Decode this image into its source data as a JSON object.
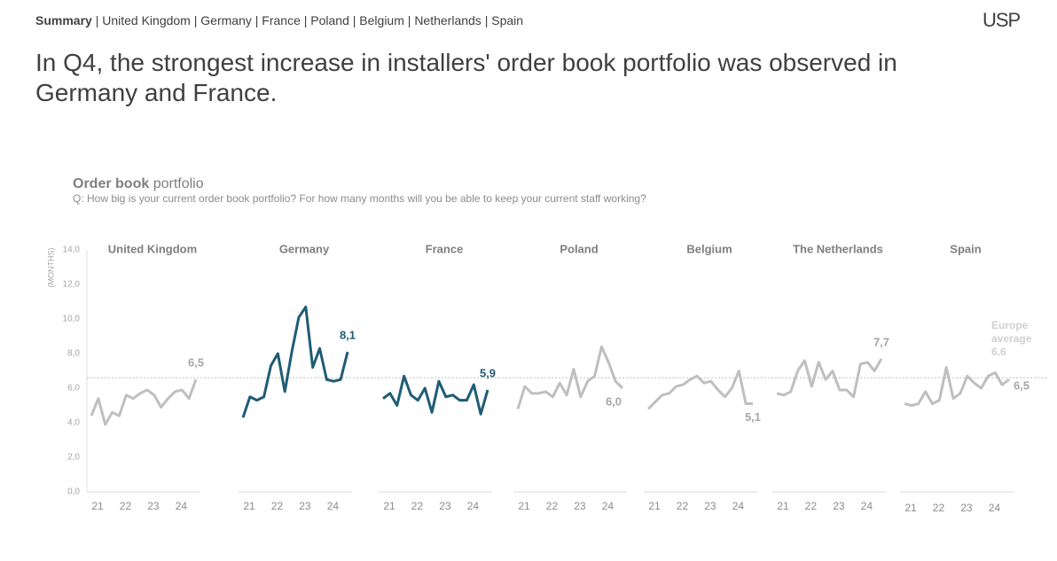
{
  "nav": [
    "Summary",
    "United Kingdom",
    "Germany",
    "France",
    "Poland",
    "Belgium",
    "Netherlands",
    "Spain"
  ],
  "nav_separator": "|",
  "logo": "USP",
  "headline": "In Q4, the strongest increase in installers' order book portfolio was observed in Germany and France.",
  "chart_data": {
    "type": "line",
    "title_bold": "Order book",
    "title": "portfolio",
    "subtitle": "Q: How big is your current order book portfolio? For how many months will you be able to keep your current staff working?",
    "ylabel": "(MONTHS)",
    "ylim": [
      0,
      14
    ],
    "yticks": [
      {
        "value": 0,
        "label": "0,0"
      },
      {
        "value": 2,
        "label": "2,0"
      },
      {
        "value": 4,
        "label": "4,0"
      },
      {
        "value": 6,
        "label": "6,0"
      },
      {
        "value": 8,
        "label": "8,0"
      },
      {
        "value": 10,
        "label": "10,0"
      },
      {
        "value": 12,
        "label": "12,0"
      },
      {
        "value": 14,
        "label": "14,0"
      }
    ],
    "categories": [
      "21",
      null,
      null,
      null,
      "22",
      null,
      null,
      null,
      "23",
      null,
      null,
      null,
      "24",
      null,
      null,
      null
    ],
    "reference": {
      "label": "Europe average",
      "value": 6.6,
      "value_label": "6.6",
      "color": "#d0d0d0"
    },
    "series": [
      {
        "name": "United Kingdom",
        "color": "#bfbfbf",
        "values": [
          4.4,
          5.4,
          3.9,
          4.6,
          4.4,
          5.6,
          5.4,
          5.7,
          5.9,
          5.6,
          4.9,
          5.4,
          5.8,
          5.9,
          5.4,
          6.5
        ],
        "value_labels": [
          null,
          null,
          null,
          null,
          null,
          null,
          null,
          null,
          null,
          null,
          null,
          null,
          null,
          null,
          null,
          "6,5"
        ]
      },
      {
        "name": "Germany",
        "color": "#1f5c75",
        "values": [
          4.3,
          5.5,
          5.3,
          5.5,
          7.3,
          8.0,
          5.8,
          8.1,
          10.1,
          10.7,
          7.2,
          8.3,
          6.5,
          6.4,
          6.5,
          8.1
        ],
        "value_labels": [
          null,
          null,
          null,
          null,
          null,
          null,
          null,
          null,
          null,
          null,
          null,
          null,
          null,
          null,
          null,
          "8,1"
        ]
      },
      {
        "name": "France",
        "color": "#1f5c75",
        "values": [
          5.4,
          5.7,
          5.0,
          6.7,
          5.6,
          5.3,
          6.0,
          4.6,
          6.4,
          5.5,
          5.6,
          5.3,
          5.3,
          6.2,
          4.5,
          5.9
        ],
        "value_labels": [
          null,
          null,
          null,
          null,
          null,
          null,
          null,
          null,
          null,
          null,
          null,
          null,
          null,
          null,
          null,
          "5,9"
        ]
      },
      {
        "name": "Poland",
        "color": "#bfbfbf",
        "values": [
          4.8,
          6.1,
          5.7,
          5.7,
          5.8,
          5.5,
          6.3,
          5.6,
          7.1,
          5.5,
          6.4,
          6.7,
          8.4,
          7.5,
          6.4,
          6.0
        ],
        "value_labels": [
          null,
          null,
          null,
          null,
          null,
          null,
          null,
          null,
          null,
          null,
          null,
          null,
          null,
          null,
          null,
          "6,0"
        ]
      },
      {
        "name": "Belgium",
        "color": "#bfbfbf",
        "values": [
          4.8,
          5.2,
          5.6,
          5.7,
          6.1,
          6.2,
          6.5,
          6.7,
          6.3,
          6.4,
          5.9,
          5.5,
          6.0,
          7.0,
          5.1,
          5.1
        ],
        "value_labels": [
          null,
          null,
          null,
          null,
          null,
          null,
          null,
          null,
          null,
          null,
          null,
          null,
          null,
          null,
          null,
          "5,1"
        ]
      },
      {
        "name": "The Netherlands",
        "color": "#bfbfbf",
        "values": [
          5.7,
          5.6,
          5.8,
          7.0,
          7.6,
          6.1,
          7.5,
          6.5,
          7.0,
          5.9,
          5.9,
          5.5,
          7.4,
          7.5,
          7.0,
          7.7
        ],
        "value_labels": [
          null,
          null,
          null,
          null,
          null,
          null,
          null,
          null,
          null,
          null,
          null,
          null,
          null,
          null,
          null,
          "7,7"
        ]
      },
      {
        "name": "Spain",
        "color": "#bfbfbf",
        "values": [
          5.1,
          5.0,
          5.1,
          5.8,
          5.1,
          5.3,
          7.2,
          5.4,
          5.7,
          6.7,
          6.3,
          6.0,
          6.7,
          6.9,
          6.2,
          6.5
        ],
        "value_labels": [
          null,
          null,
          null,
          null,
          null,
          null,
          null,
          null,
          null,
          null,
          null,
          null,
          null,
          null,
          null,
          "6,5"
        ]
      }
    ]
  }
}
